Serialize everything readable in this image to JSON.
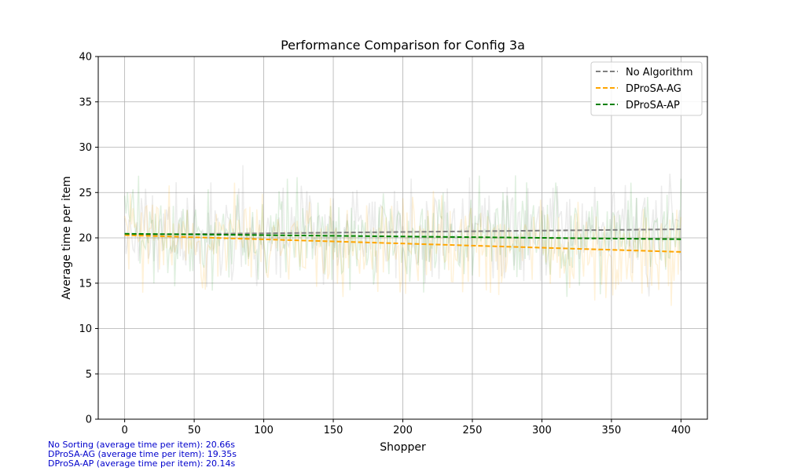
{
  "chart_data": {
    "type": "line",
    "title": "Performance Comparison for Config 3a",
    "xlabel": "Shopper",
    "ylabel": "Average time per item",
    "xlim": [
      -19,
      419
    ],
    "ylim": [
      0,
      40
    ],
    "xticks": [
      0,
      50,
      100,
      150,
      200,
      250,
      300,
      350,
      400
    ],
    "yticks": [
      0,
      5,
      10,
      15,
      20,
      25,
      30,
      35,
      40
    ],
    "grid": true,
    "legend_position": "top-right",
    "series": [
      {
        "name": "No Algorithm",
        "color": "#808080",
        "style": "dashed",
        "kind": "trend",
        "x": [
          0,
          400
        ],
        "y": [
          20.35,
          20.95
        ]
      },
      {
        "name": "DProSA-AG",
        "color": "#ffa500",
        "style": "dashed",
        "kind": "trend",
        "x": [
          0,
          400
        ],
        "y": [
          20.3,
          18.45
        ]
      },
      {
        "name": "DProSA-AP",
        "color": "#008000",
        "style": "dashed",
        "kind": "trend",
        "x": [
          0,
          400
        ],
        "y": [
          20.45,
          19.85
        ]
      }
    ],
    "raw_series": [
      {
        "color": "#808080",
        "opacity": 0.15,
        "mean": 20.66,
        "spread": 2.6,
        "seed": 11,
        "trend": [
          20.35,
          20.95
        ]
      },
      {
        "color": "#ffa500",
        "opacity": 0.15,
        "mean": 19.35,
        "spread": 2.6,
        "seed": 23,
        "trend": [
          20.3,
          18.45
        ]
      },
      {
        "color": "#008000",
        "opacity": 0.12,
        "mean": 20.14,
        "spread": 2.6,
        "seed": 37,
        "trend": [
          20.45,
          19.85
        ]
      }
    ],
    "annotations": [
      "No Sorting (average time per item): 20.66s",
      "DProSA-AG (average time per item): 19.35s",
      "DProSA-AP (average time per item): 20.14s"
    ],
    "annotation_color": "#0000cc"
  }
}
